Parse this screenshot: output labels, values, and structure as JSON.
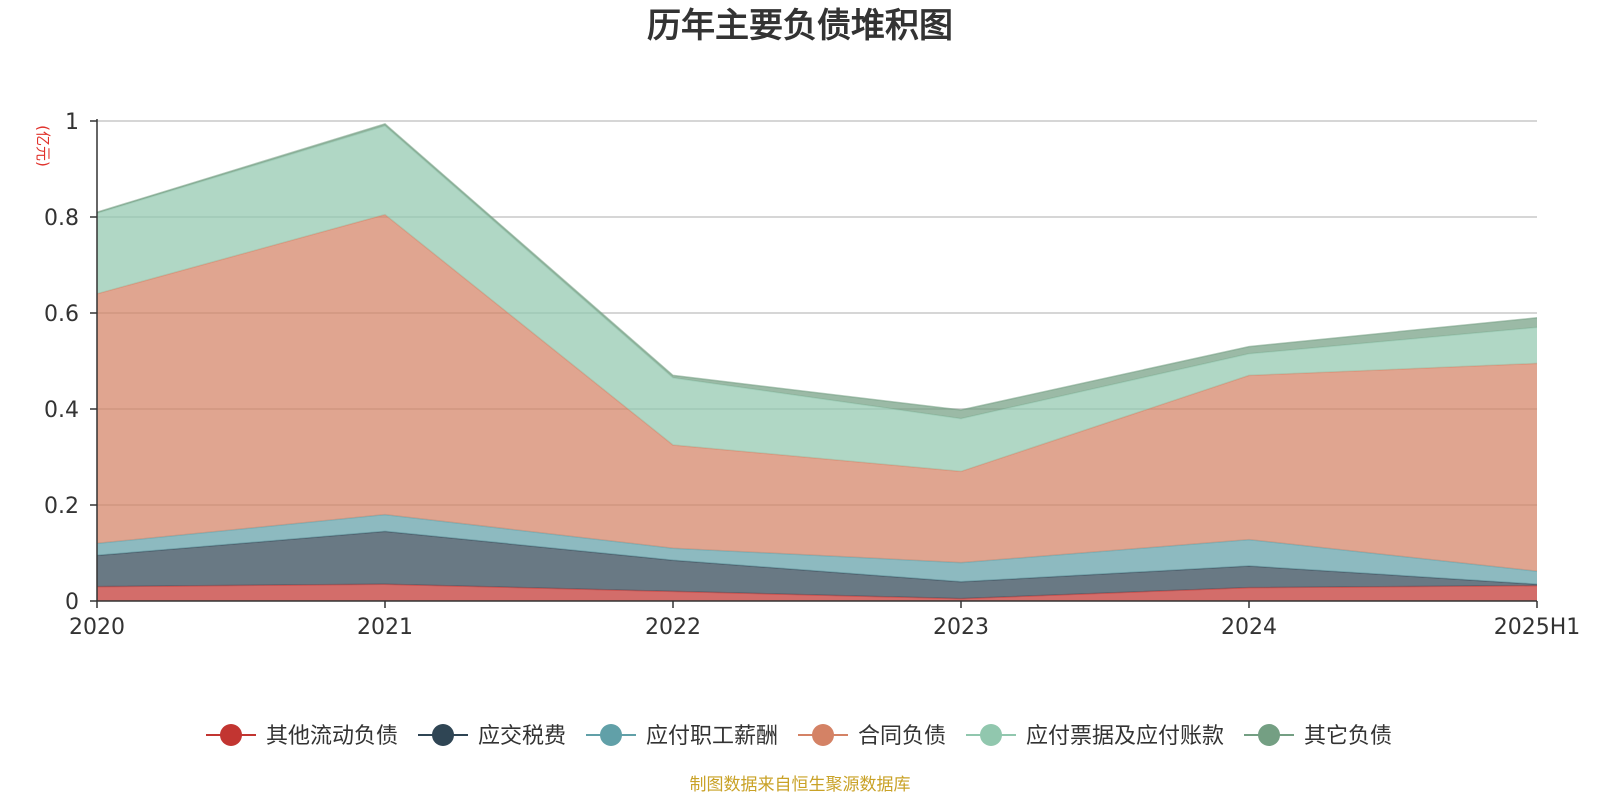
{
  "chart_data": {
    "type": "area",
    "stacked": true,
    "title": "历年主要负债堆积图",
    "unit_label": "(亿元)",
    "x": [
      "2020",
      "2021",
      "2022",
      "2023",
      "2024",
      "2025H1"
    ],
    "ylim": [
      0,
      1
    ],
    "yticks": [
      "0",
      "0.2",
      "0.4",
      "0.6",
      "0.8",
      "1"
    ],
    "ytick_values": [
      0,
      0.2,
      0.4,
      0.6,
      0.8,
      1
    ],
    "grid": true,
    "legend_position": "bottom",
    "series": [
      {
        "name": "其他流动负债",
        "color": "#c23531",
        "values": [
          0.03,
          0.035,
          0.02,
          0.005,
          0.028,
          0.032
        ]
      },
      {
        "name": "应交税费",
        "color": "#2f4554",
        "values": [
          0.065,
          0.11,
          0.065,
          0.035,
          0.045,
          0.003
        ]
      },
      {
        "name": "应付职工薪酬",
        "color": "#61a0a8",
        "values": [
          0.025,
          0.035,
          0.025,
          0.04,
          0.055,
          0.027
        ]
      },
      {
        "name": "合同负债",
        "color": "#d48265",
        "values": [
          0.52,
          0.625,
          0.215,
          0.19,
          0.342,
          0.433
        ]
      },
      {
        "name": "应付票据及应付账款",
        "color": "#91c7ae",
        "values": [
          0.168,
          0.185,
          0.14,
          0.11,
          0.045,
          0.075
        ]
      },
      {
        "name": "其它负债",
        "color": "#749f83",
        "values": [
          0.002,
          0.004,
          0.005,
          0.018,
          0.015,
          0.02
        ]
      }
    ]
  },
  "source_note": "制图数据来自恒生聚源数据库"
}
